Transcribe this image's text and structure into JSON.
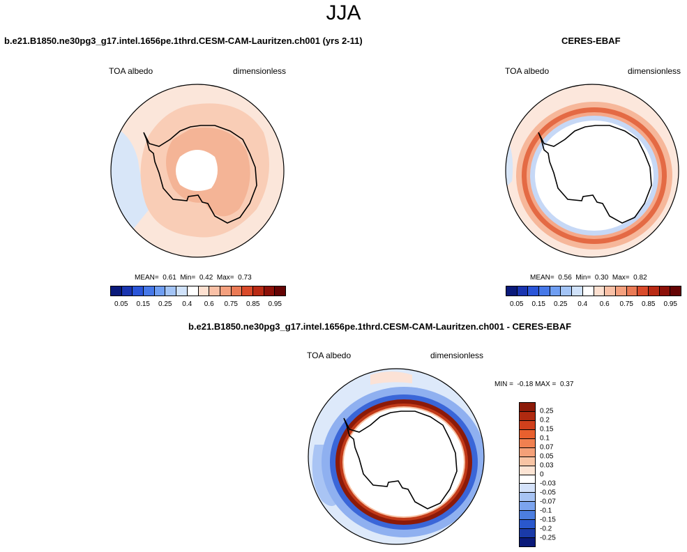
{
  "figure": {
    "title": "JJA",
    "left_title": "b.e21.B1850.ne30pg3_g17.intel.1656pe.1thrd.CESM-CAM-Lauritzen.ch001 (yrs 2-11)",
    "right_title": "CERES-EBAF",
    "diff_title": "b.e21.B1850.ne30pg3_g17.intel.1656pe.1thrd.CESM-CAM-Lauritzen.ch001 - CERES-EBAF"
  },
  "chart_data": [
    {
      "type": "heatmap",
      "id": "model",
      "projection": "south polar stereographic",
      "variable": "TOA albedo",
      "units": "dimensionless",
      "stats": {
        "mean_label": "MEAN=",
        "mean": "0.61",
        "min_label": "Min=",
        "min": "0.42",
        "max_label": "Max=",
        "max": "0.73"
      },
      "colorbar": {
        "levels": [
          "0.05",
          "0.1",
          "0.15",
          "0.2",
          "0.25",
          "0.3",
          "0.4",
          "0.5",
          "0.6",
          "0.7",
          "0.75",
          "0.8",
          "0.85",
          "0.9",
          "0.95"
        ],
        "tick_labels": [
          "0.05",
          "0.15",
          "0.25",
          "0.4",
          "0.6",
          "0.75",
          "0.85",
          "0.95"
        ],
        "colors": [
          "#0a1a7a",
          "#1a35b0",
          "#2a55d8",
          "#4678e8",
          "#6f9ef2",
          "#a3c4f6",
          "#d0e2fa",
          "#ffffff",
          "#fde0d0",
          "#f9c0a6",
          "#f4a07e",
          "#ea7a55",
          "#d94a2a",
          "#b92a14",
          "#8c1008",
          "#650404"
        ]
      }
    },
    {
      "type": "heatmap",
      "id": "obs",
      "projection": "south polar stereographic",
      "variable": "TOA albedo",
      "units": "dimensionless",
      "stats": {
        "mean_label": "MEAN=",
        "mean": "0.56",
        "min_label": "Min=",
        "min": "0.30",
        "max_label": "Max=",
        "max": "0.82"
      },
      "colorbar": {
        "levels": [
          "0.05",
          "0.1",
          "0.15",
          "0.2",
          "0.25",
          "0.3",
          "0.4",
          "0.5",
          "0.6",
          "0.7",
          "0.75",
          "0.8",
          "0.85",
          "0.9",
          "0.95"
        ],
        "tick_labels": [
          "0.05",
          "0.15",
          "0.25",
          "0.4",
          "0.6",
          "0.75",
          "0.85",
          "0.95"
        ],
        "colors": [
          "#0a1a7a",
          "#1a35b0",
          "#2a55d8",
          "#4678e8",
          "#6f9ef2",
          "#a3c4f6",
          "#d0e2fa",
          "#ffffff",
          "#fde0d0",
          "#f9c0a6",
          "#f4a07e",
          "#ea7a55",
          "#d94a2a",
          "#b92a14",
          "#8c1008",
          "#650404"
        ]
      }
    },
    {
      "type": "heatmap",
      "id": "diff",
      "projection": "south polar stereographic",
      "variable": "TOA albedo",
      "units": "dimensionless",
      "stats": {
        "min_label": "MIN =",
        "min": "-0.18",
        "max_label": "MAX =",
        "max": "0.37"
      },
      "colorbar": {
        "levels": [
          "0.25",
          "0.2",
          "0.15",
          "0.1",
          "0.07",
          "0.05",
          "0.03",
          "0",
          "-0.03",
          "-0.05",
          "-0.07",
          "-0.1",
          "-0.15",
          "-0.2",
          "-0.25"
        ],
        "colors": [
          "#8c1a08",
          "#b02a10",
          "#d0401c",
          "#e8602e",
          "#f08050",
          "#f4a078",
          "#f8c4a4",
          "#fce4d4",
          "#ffffff",
          "#d4e2fa",
          "#a8c4f4",
          "#7ca4ee",
          "#4c7ee0",
          "#2a58cc",
          "#1a3aa8",
          "#0a1a7a"
        ]
      }
    }
  ]
}
